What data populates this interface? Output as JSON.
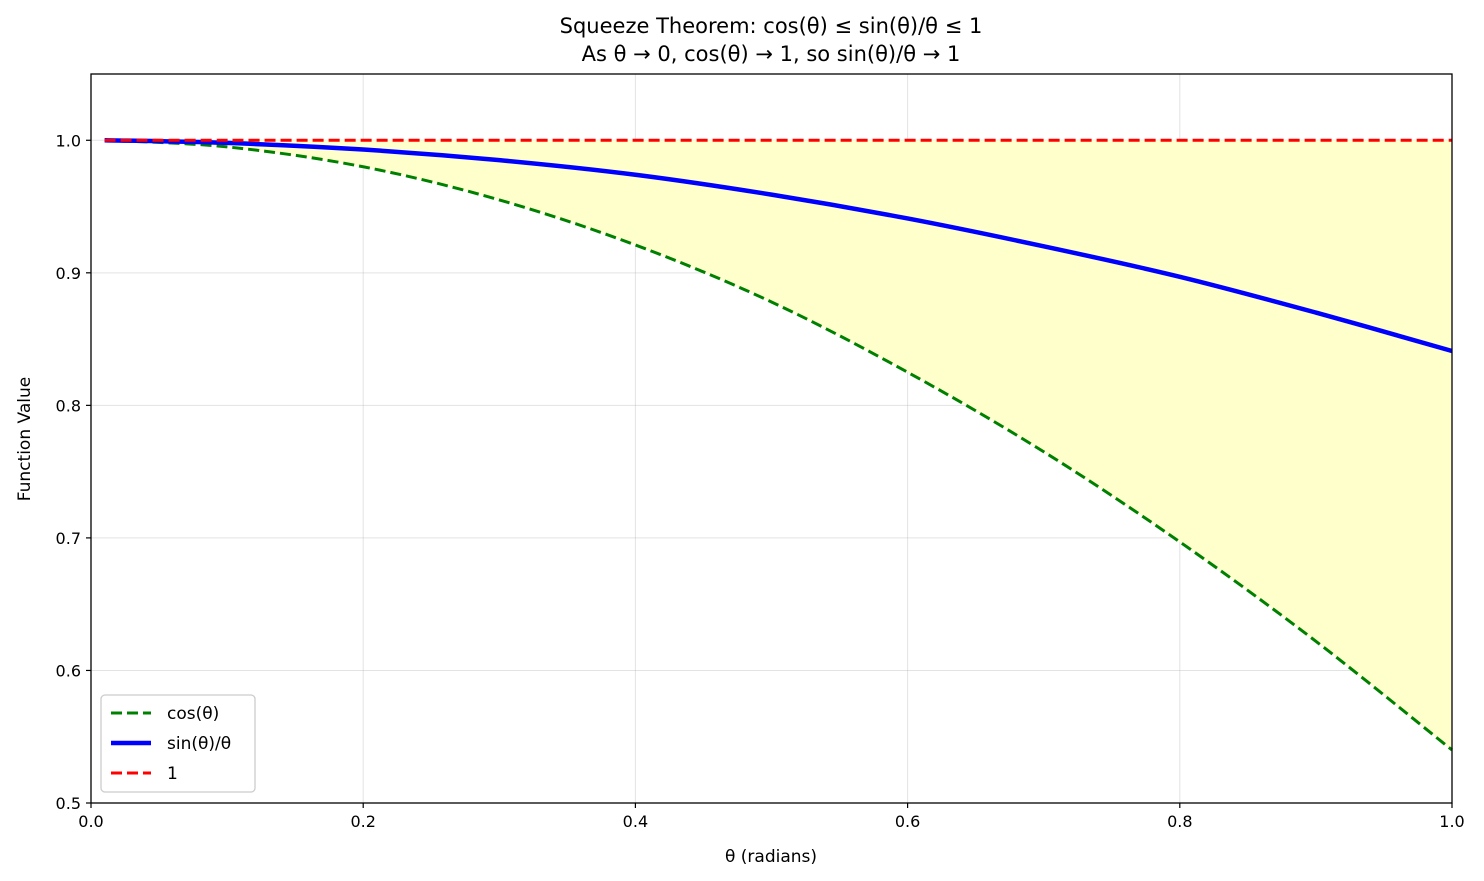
{
  "chart_data": {
    "type": "line",
    "title_line1": "Squeeze Theorem: cos(θ) ≤ sin(θ)/θ ≤ 1",
    "title_line2": "As θ → 0, cos(θ) → 1, so sin(θ)/θ → 1",
    "xlabel": "θ (radians)",
    "ylabel": "Function Value",
    "xlim": [
      0.0,
      1.0
    ],
    "ylim": [
      0.5,
      1.05
    ],
    "xticks": [
      "0.0",
      "0.2",
      "0.4",
      "0.6",
      "0.8",
      "1.0"
    ],
    "yticks": [
      "0.5",
      "0.6",
      "0.7",
      "0.8",
      "0.9",
      "1.0"
    ],
    "grid": true,
    "legend_position": "lower-left",
    "fill_between": {
      "lower": "cos(θ)",
      "upper": "1",
      "color": "#ffffcc"
    },
    "x": [
      0.01,
      0.1,
      0.2,
      0.3,
      0.4,
      0.5,
      0.6,
      0.7,
      0.8,
      0.9,
      1.0
    ],
    "series": [
      {
        "name": "cos(θ)",
        "style": "dashed",
        "color": "#008000",
        "values": [
          1.0,
          0.995,
          0.98,
          0.955,
          0.921,
          0.878,
          0.825,
          0.765,
          0.697,
          0.622,
          0.54
        ]
      },
      {
        "name": "sin(θ)/θ",
        "style": "solid",
        "color": "#0000ff",
        "values": [
          1.0,
          0.998,
          0.993,
          0.985,
          0.974,
          0.959,
          0.941,
          0.92,
          0.897,
          0.87,
          0.841
        ]
      },
      {
        "name": "1",
        "style": "dashed",
        "color": "#ff0000",
        "values": [
          1.0,
          1.0,
          1.0,
          1.0,
          1.0,
          1.0,
          1.0,
          1.0,
          1.0,
          1.0,
          1.0
        ]
      }
    ]
  }
}
